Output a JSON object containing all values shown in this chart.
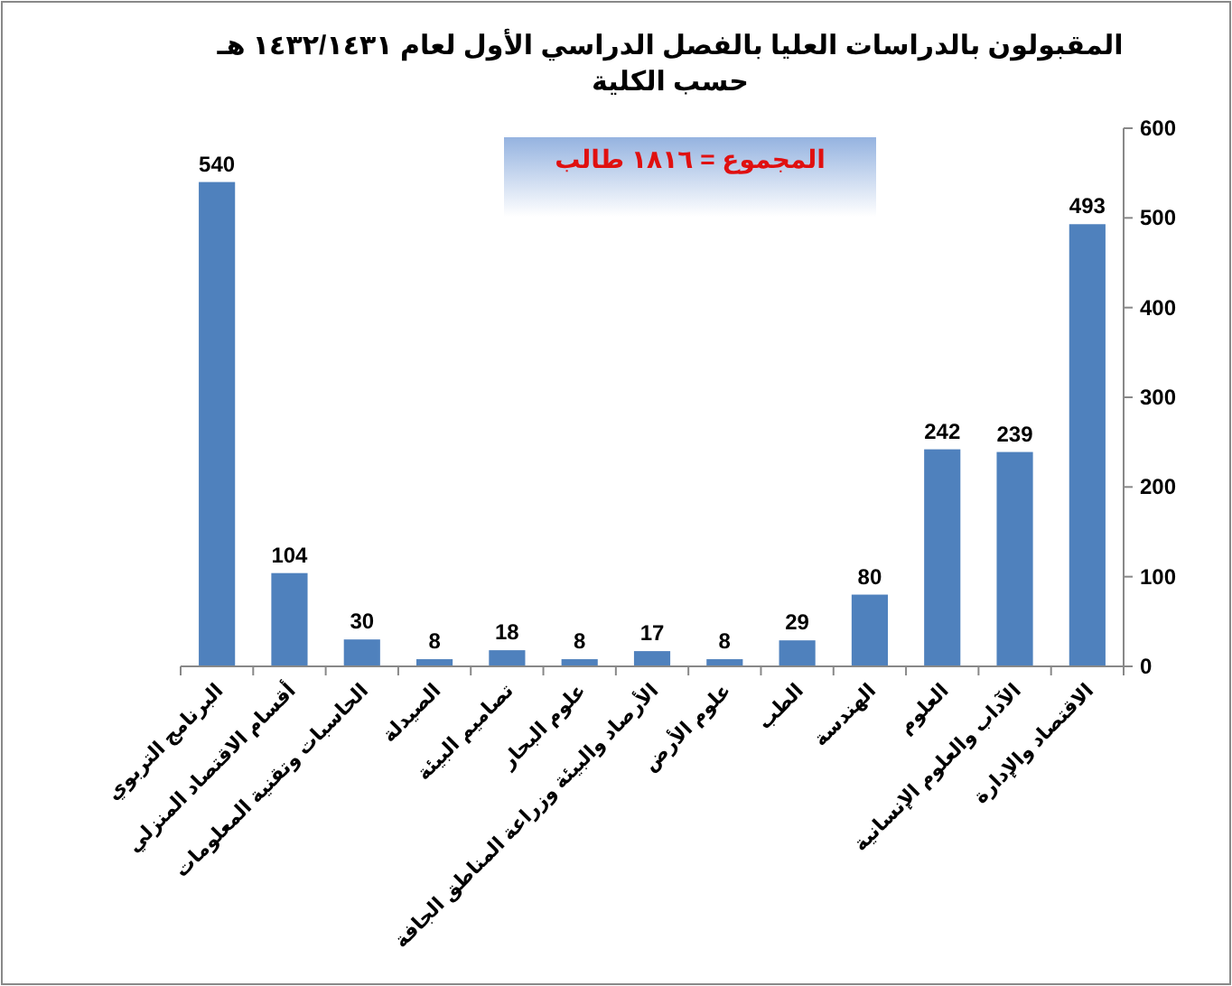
{
  "chart_data": {
    "type": "bar",
    "title": "المقبولون بالدراسات العليا بالفصل الدراسي الأول لعام ١٤٣٢/١٤٣١ هـ",
    "subtitle": "حسب الكلية",
    "categories": [
      "البرنامج التربوي",
      "أقسام الاقتصاد المنزلي",
      "الحاسبات وتقنية المعلومات",
      "الصيدلة",
      "تصاميم البيئة",
      "علوم البحار",
      "الأرصاد والبيئة وزراعة المناطق الجافة",
      "علوم الأرض",
      "الطب",
      "الهندسة",
      "العلوم",
      "الآداب والعلوم الإنسانية",
      "الاقتصاد والإدارة"
    ],
    "values": [
      540,
      104,
      30,
      8,
      18,
      8,
      17,
      8,
      29,
      80,
      242,
      239,
      493
    ],
    "color": "#4f81bd",
    "ylim": [
      0,
      600
    ],
    "yticks": [
      0,
      100,
      200,
      300,
      400,
      500,
      600
    ],
    "grid": false,
    "data_labels": true,
    "annotations": [
      "المجموع = ١٨١٦ طالب"
    ]
  }
}
